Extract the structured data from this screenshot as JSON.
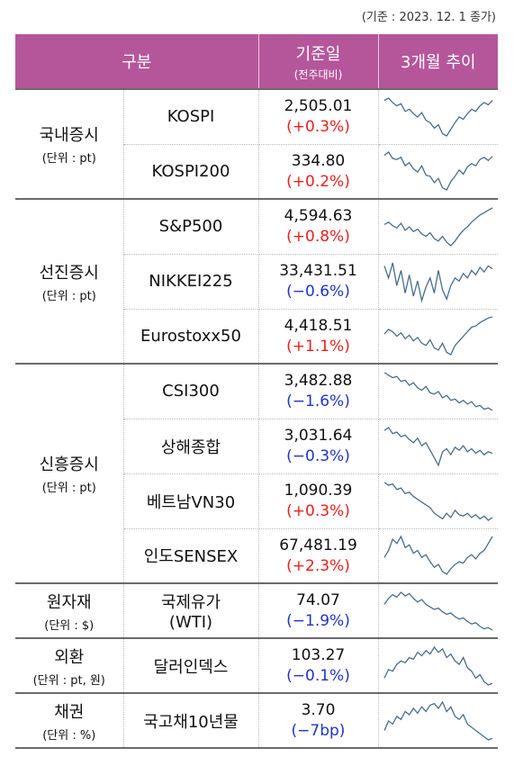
{
  "ref_note": "(기준 : 2023. 12. 1 종가)",
  "header": {
    "category": "구분",
    "base_day": "기준일",
    "base_day_sub": "(전주대비)",
    "trend": "3개월 추이"
  },
  "groups": [
    {
      "name": "국내증시",
      "unit": "(단위 : pt)",
      "rows": [
        {
          "item": "KOSPI",
          "value": "2,505.01",
          "change": "(+0.3%)",
          "dir": "up",
          "trend": [
            60,
            62,
            58,
            55,
            57,
            50,
            52,
            48,
            45,
            49,
            42,
            40,
            35,
            38,
            30,
            28,
            34,
            40,
            45,
            43,
            48,
            52,
            50,
            55,
            58,
            56,
            60
          ]
        },
        {
          "item": "KOSPI200",
          "value": "334.80",
          "change": "(+0.2%)",
          "dir": "up",
          "trend": [
            60,
            63,
            57,
            56,
            58,
            50,
            53,
            47,
            44,
            50,
            41,
            40,
            34,
            38,
            29,
            27,
            35,
            40,
            46,
            42,
            49,
            52,
            50,
            56,
            58,
            55,
            59
          ]
        }
      ]
    },
    {
      "name": "선진증시",
      "unit": "(단위 : pt)",
      "rows": [
        {
          "item": "S&P500",
          "value": "4,594.63",
          "change": "(+0.8%)",
          "dir": "up",
          "trend": [
            50,
            52,
            49,
            47,
            51,
            45,
            48,
            44,
            46,
            42,
            40,
            43,
            38,
            36,
            40,
            35,
            32,
            36,
            41,
            45,
            48,
            52,
            55,
            58,
            60,
            62,
            64
          ]
        },
        {
          "item": "NIKKEI225",
          "value": "33,431.51",
          "change": "(−0.6%)",
          "dir": "down",
          "trend": [
            58,
            50,
            60,
            45,
            55,
            40,
            52,
            38,
            48,
            35,
            44,
            50,
            40,
            55,
            42,
            36,
            45,
            50,
            48,
            53,
            50,
            55,
            52,
            57,
            54,
            58,
            56
          ]
        },
        {
          "item": "Eurostoxx50",
          "value": "4,418.51",
          "change": "(+1.1%)",
          "dir": "up",
          "trend": [
            48,
            52,
            50,
            46,
            49,
            44,
            47,
            42,
            45,
            40,
            38,
            43,
            36,
            34,
            40,
            32,
            30,
            38,
            42,
            46,
            50,
            54,
            55,
            58,
            60,
            62,
            63
          ]
        }
      ]
    },
    {
      "name": "신흥증시",
      "unit": "(단위 : pt)",
      "rows": [
        {
          "item": "CSI300",
          "value": "3,482.88",
          "change": "(−1.6%)",
          "dir": "down",
          "trend": [
            62,
            60,
            58,
            59,
            55,
            56,
            52,
            54,
            50,
            48,
            51,
            46,
            45,
            47,
            42,
            44,
            40,
            41,
            38,
            40,
            37,
            39,
            35,
            36,
            33,
            34,
            32
          ]
        },
        {
          "item": "상해종합",
          "value": "3,031.64",
          "change": "(−0.3%)",
          "dir": "down",
          "trend": [
            58,
            60,
            56,
            57,
            54,
            55,
            52,
            50,
            53,
            48,
            50,
            45,
            40,
            35,
            44,
            46,
            42,
            47,
            45,
            48,
            44,
            46,
            43,
            45,
            42,
            44,
            43
          ]
        },
        {
          "item": "베트남VN30",
          "value": "1,090.39",
          "change": "(+0.3%)",
          "dir": "up",
          "trend": [
            62,
            60,
            61,
            57,
            58,
            54,
            55,
            52,
            50,
            48,
            46,
            44,
            40,
            38,
            36,
            40,
            37,
            42,
            39,
            38,
            40,
            37,
            39,
            36,
            38,
            35,
            37
          ]
        },
        {
          "item": "인도SENSEX",
          "value": "67,481.19",
          "change": "(+2.3%)",
          "dir": "up",
          "trend": [
            45,
            50,
            58,
            55,
            60,
            52,
            54,
            48,
            50,
            45,
            47,
            42,
            38,
            40,
            35,
            33,
            37,
            40,
            42,
            41,
            45,
            47,
            44,
            48,
            50,
            55,
            60
          ]
        }
      ]
    },
    {
      "name": "원자재",
      "unit": "(단위 : $)",
      "rows": [
        {
          "item": "국제유가\n(WTI)",
          "value": "74.07",
          "change": "(−1.9%)",
          "dir": "down",
          "trend": [
            50,
            55,
            58,
            56,
            60,
            57,
            59,
            55,
            52,
            54,
            50,
            48,
            46,
            47,
            44,
            42,
            43,
            40,
            38,
            39,
            36,
            34,
            35,
            32,
            30,
            31,
            29
          ]
        }
      ]
    },
    {
      "name": "외환",
      "unit": "(단위 : pt, 원)",
      "rows": [
        {
          "item": "달러인덱스",
          "value": "103.27",
          "change": "(−0.1%)",
          "dir": "down",
          "trend": [
            40,
            45,
            44,
            48,
            50,
            49,
            52,
            51,
            55,
            53,
            56,
            54,
            58,
            55,
            57,
            52,
            54,
            50,
            48,
            52,
            46,
            44,
            40,
            42,
            38,
            36,
            37
          ]
        }
      ]
    },
    {
      "name": "채권",
      "unit": "(단위 : %)",
      "rows": [
        {
          "item": "국고채10년물",
          "value": "3.70",
          "change": "(−7bp)",
          "dir": "down",
          "trend": [
            38,
            44,
            42,
            47,
            45,
            50,
            48,
            52,
            49,
            53,
            50,
            54,
            55,
            52,
            56,
            50,
            53,
            47,
            45,
            48,
            42,
            40,
            38,
            36,
            34,
            32,
            33
          ]
        }
      ]
    }
  ]
}
